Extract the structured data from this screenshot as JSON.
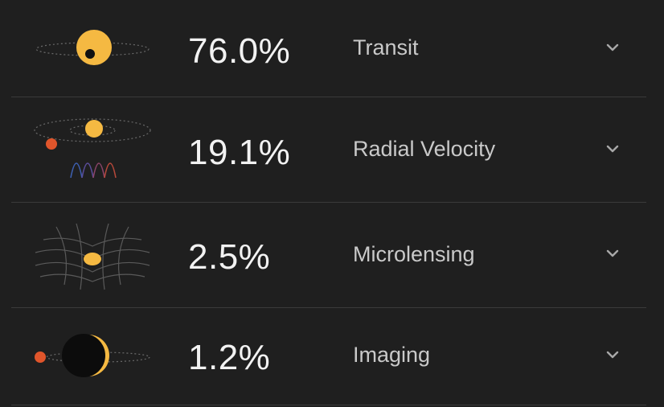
{
  "methods": [
    {
      "percent": "76.0%",
      "label": "Transit",
      "icon": "transit-illustration"
    },
    {
      "percent": "19.1%",
      "label": "Radial Velocity",
      "icon": "radial-velocity-illustration"
    },
    {
      "percent": "2.5%",
      "label": "Microlensing",
      "icon": "microlensing-illustration"
    },
    {
      "percent": "1.2%",
      "label": "Imaging",
      "icon": "imaging-illustration"
    }
  ],
  "colors": {
    "background": "#1f1f1f",
    "star": "#f5b942",
    "planet": "#e0552b",
    "divider": "#3a3a3a",
    "percent_text": "#f2f2f2",
    "label_text": "#c9c9c9",
    "chevron": "#a8a8a8"
  }
}
